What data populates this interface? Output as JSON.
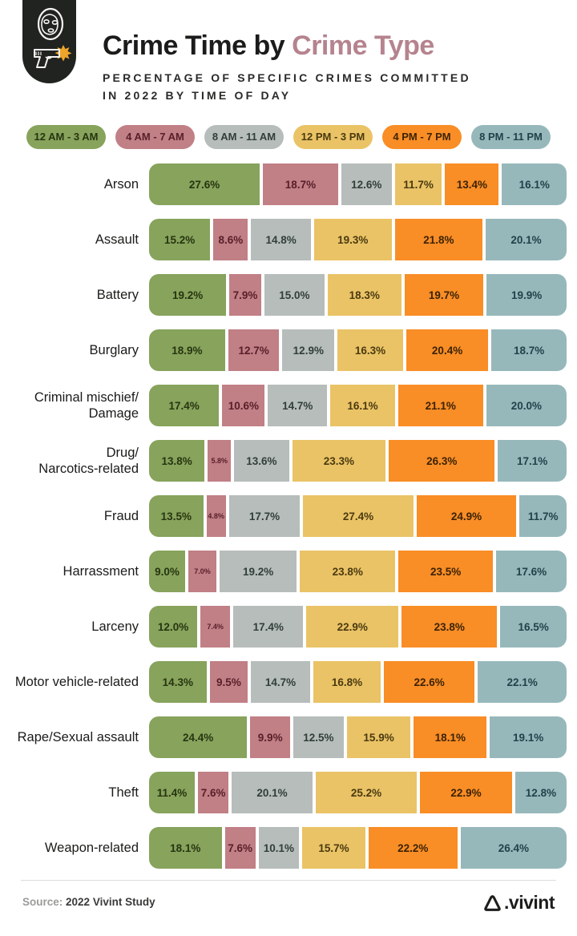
{
  "header": {
    "title": "Crime Time by",
    "title_accent": "Crime Type",
    "subtitle_line1": "PERCENTAGE OF SPECIFIC CRIMES COMMITTED",
    "subtitle_line2": "IN 2022 BY TIME OF DAY",
    "icon": "robber-with-gun-icon",
    "accent_color": "#b5838e"
  },
  "chart_data": {
    "type": "bar",
    "stacked": true,
    "orientation": "horizontal",
    "unit": "%",
    "row_total": 100,
    "legend_position": "top",
    "series_labels": [
      "12 AM - 3 AM",
      "4 AM - 7 AM",
      "8 AM - 11 AM",
      "12 PM - 3 PM",
      "4 PM - 7 PM",
      "8 PM - 11 PM"
    ],
    "series_colors": [
      "#87A35C",
      "#C17F86",
      "#B6BDBA",
      "#EAC366",
      "#F98D26",
      "#97B8BB"
    ],
    "series_text_colors": [
      "#273510",
      "#581F29",
      "#323E3A",
      "#4A3A10",
      "#3C2305",
      "#21424A"
    ],
    "small_label_threshold": 7.5,
    "categories": [
      "Arson",
      "Assault",
      "Battery",
      "Burglary",
      "Criminal mischief/\nDamage",
      "Drug/\nNarcotics-related",
      "Fraud",
      "Harrassment",
      "Larceny",
      "Motor vehicle-related",
      "Rape/Sexual assault",
      "Theft",
      "Weapon-related"
    ],
    "rows": [
      {
        "category": "Arson",
        "values": [
          27.6,
          18.7,
          12.6,
          11.7,
          13.4,
          16.1
        ]
      },
      {
        "category": "Assault",
        "values": [
          15.2,
          8.6,
          14.8,
          19.3,
          21.8,
          20.1
        ]
      },
      {
        "category": "Battery",
        "values": [
          19.2,
          7.9,
          15.0,
          18.3,
          19.7,
          19.9
        ]
      },
      {
        "category": "Burglary",
        "values": [
          18.9,
          12.7,
          12.9,
          16.3,
          20.4,
          18.7
        ]
      },
      {
        "category": "Criminal mischief/\nDamage",
        "values": [
          17.4,
          10.6,
          14.7,
          16.1,
          21.1,
          20.0
        ]
      },
      {
        "category": "Drug/\nNarcotics-related",
        "values": [
          13.8,
          5.8,
          13.6,
          23.3,
          26.3,
          17.1
        ]
      },
      {
        "category": "Fraud",
        "values": [
          13.5,
          4.8,
          17.7,
          27.4,
          24.9,
          11.7
        ]
      },
      {
        "category": "Harrassment",
        "values": [
          9.0,
          7.0,
          19.2,
          23.8,
          23.5,
          17.6
        ]
      },
      {
        "category": "Larceny",
        "values": [
          12.0,
          7.4,
          17.4,
          22.9,
          23.8,
          16.5
        ]
      },
      {
        "category": "Motor vehicle-related",
        "values": [
          14.3,
          9.5,
          14.7,
          16.8,
          22.6,
          22.1
        ]
      },
      {
        "category": "Rape/Sexual assault",
        "values": [
          24.4,
          9.9,
          12.5,
          15.9,
          18.1,
          19.1
        ]
      },
      {
        "category": "Theft",
        "values": [
          11.4,
          7.6,
          20.1,
          25.2,
          22.9,
          12.8
        ]
      },
      {
        "category": "Weapon-related",
        "values": [
          18.1,
          7.6,
          10.1,
          15.7,
          22.2,
          26.4
        ]
      }
    ]
  },
  "footer": {
    "source_label": "Source:",
    "source_text": "2022 Vivint Study",
    "brand": ".vivint",
    "brand_icon": "vivint-house-icon"
  }
}
